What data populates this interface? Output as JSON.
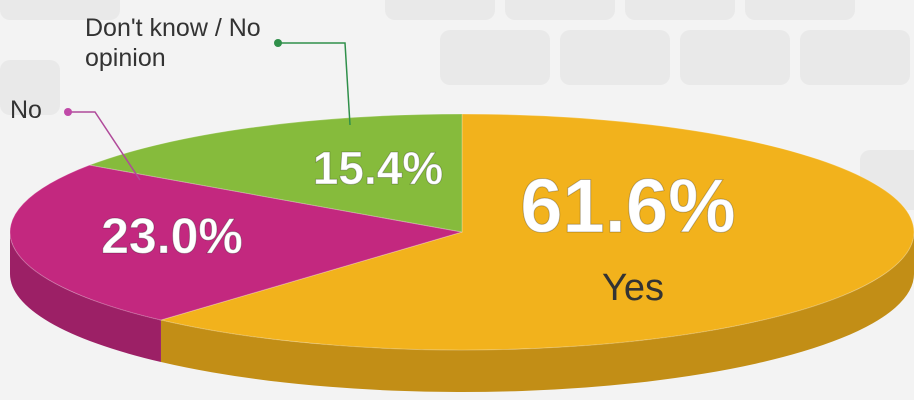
{
  "chart_data": {
    "type": "pie",
    "categories": [
      "Yes",
      "No",
      "Don't know / No opinion"
    ],
    "values": [
      61.6,
      23.0,
      15.4
    ],
    "value_labels": [
      "61.6%",
      "23.0%",
      "15.4%"
    ],
    "colors": [
      "#f2b21c",
      "#c3287f",
      "#86bb3c"
    ]
  }
}
